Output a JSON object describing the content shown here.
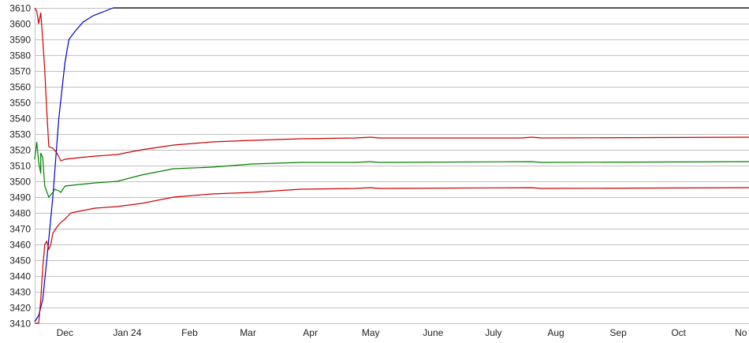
{
  "chart_data": {
    "type": "line",
    "title": "",
    "xlabel": "",
    "ylabel": "",
    "xlim": [
      "2023-11-16",
      "2024-11-05"
    ],
    "ylim": [
      3410,
      3610
    ],
    "grid": "horizontal",
    "legend": "none",
    "y_ticks": [
      3410,
      3420,
      3430,
      3440,
      3450,
      3460,
      3470,
      3480,
      3490,
      3500,
      3510,
      3520,
      3530,
      3540,
      3550,
      3560,
      3570,
      3580,
      3590,
      3600,
      3610
    ],
    "x_ticks": [
      {
        "date": "2023-12-01",
        "label": "Dec"
      },
      {
        "date": "2024-01-01",
        "label": "Jan 24"
      },
      {
        "date": "2024-02-01",
        "label": "Feb"
      },
      {
        "date": "2024-03-01",
        "label": "Mar"
      },
      {
        "date": "2024-04-01",
        "label": "Apr"
      },
      {
        "date": "2024-05-01",
        "label": "May"
      },
      {
        "date": "2024-06-01",
        "label": "June"
      },
      {
        "date": "2024-07-01",
        "label": "July"
      },
      {
        "date": "2024-08-01",
        "label": "Aug"
      },
      {
        "date": "2024-09-01",
        "label": "Sep"
      },
      {
        "date": "2024-10-01",
        "label": "Oct"
      },
      {
        "date": "2024-11-01",
        "label": "No"
      }
    ],
    "series": [
      {
        "color": "#000000",
        "points": [
          [
            "2023-12-25",
            3610
          ],
          [
            "2024-11-05",
            3610
          ]
        ]
      },
      {
        "color": "#0000cc",
        "points": [
          [
            "2023-11-16",
            3411
          ],
          [
            "2023-11-18",
            3415
          ],
          [
            "2023-11-20",
            3425
          ],
          [
            "2023-11-22",
            3450
          ],
          [
            "2023-11-25",
            3490
          ],
          [
            "2023-11-28",
            3540
          ],
          [
            "2023-12-01",
            3575
          ],
          [
            "2023-12-03",
            3590
          ],
          [
            "2023-12-06",
            3595
          ],
          [
            "2023-12-10",
            3601
          ],
          [
            "2023-12-15",
            3605
          ],
          [
            "2023-12-25",
            3610
          ]
        ]
      },
      {
        "color": "#cc0000",
        "points": [
          [
            "2023-11-16",
            3610
          ],
          [
            "2023-11-17",
            3608
          ],
          [
            "2023-11-18",
            3600
          ],
          [
            "2023-11-19",
            3607
          ],
          [
            "2023-11-20",
            3590
          ],
          [
            "2023-11-21",
            3570
          ],
          [
            "2023-11-22",
            3545
          ],
          [
            "2023-11-23",
            3522
          ],
          [
            "2023-11-25",
            3521
          ],
          [
            "2023-11-27",
            3518
          ],
          [
            "2023-11-29",
            3513
          ],
          [
            "2023-12-01",
            3514
          ],
          [
            "2023-12-08",
            3515
          ],
          [
            "2023-12-16",
            3516
          ],
          [
            "2023-12-27",
            3517
          ],
          [
            "2024-01-08",
            3520
          ],
          [
            "2024-01-24",
            3523
          ],
          [
            "2024-02-12",
            3525
          ],
          [
            "2024-03-03",
            3526
          ],
          [
            "2024-03-27",
            3527
          ],
          [
            "2024-04-23",
            3527.5
          ],
          [
            "2024-05-01",
            3528
          ],
          [
            "2024-05-05",
            3527.5
          ],
          [
            "2024-07-15",
            3527.5
          ],
          [
            "2024-07-20",
            3528
          ],
          [
            "2024-07-25",
            3527.5
          ],
          [
            "2024-11-05",
            3528
          ]
        ]
      },
      {
        "color": "#008000",
        "points": [
          [
            "2023-11-16",
            3514
          ],
          [
            "2023-11-17",
            3525
          ],
          [
            "2023-11-18",
            3512
          ],
          [
            "2023-11-19",
            3505
          ],
          [
            "2023-11-19",
            3518
          ],
          [
            "2023-11-20",
            3515
          ],
          [
            "2023-11-21",
            3497
          ],
          [
            "2023-11-23",
            3490
          ],
          [
            "2023-11-25",
            3493
          ],
          [
            "2023-11-26",
            3495
          ],
          [
            "2023-11-28",
            3494
          ],
          [
            "2023-11-29",
            3493
          ],
          [
            "2023-12-01",
            3497
          ],
          [
            "2023-12-08",
            3498
          ],
          [
            "2023-12-16",
            3499
          ],
          [
            "2023-12-27",
            3500
          ],
          [
            "2024-01-08",
            3504
          ],
          [
            "2024-01-24",
            3508
          ],
          [
            "2024-02-12",
            3509
          ],
          [
            "2024-03-03",
            3511
          ],
          [
            "2024-03-27",
            3512
          ],
          [
            "2024-04-23",
            3512
          ],
          [
            "2024-05-01",
            3512.5
          ],
          [
            "2024-05-05",
            3512
          ],
          [
            "2024-07-20",
            3512.5
          ],
          [
            "2024-07-25",
            3512
          ],
          [
            "2024-11-05",
            3512.5
          ]
        ]
      },
      {
        "color": "#cc0000",
        "points": [
          [
            "2023-11-16",
            3410
          ],
          [
            "2023-11-18",
            3410
          ],
          [
            "2023-11-19",
            3425
          ],
          [
            "2023-11-20",
            3445
          ],
          [
            "2023-11-21",
            3460
          ],
          [
            "2023-11-22",
            3462
          ],
          [
            "2023-11-23",
            3457
          ],
          [
            "2023-11-24",
            3460
          ],
          [
            "2023-11-25",
            3467
          ],
          [
            "2023-11-27",
            3471
          ],
          [
            "2023-11-29",
            3474
          ],
          [
            "2023-12-01",
            3476
          ],
          [
            "2023-12-04",
            3480
          ],
          [
            "2023-12-08",
            3481
          ],
          [
            "2023-12-16",
            3483
          ],
          [
            "2023-12-27",
            3484
          ],
          [
            "2024-01-08",
            3486
          ],
          [
            "2024-01-24",
            3490
          ],
          [
            "2024-02-12",
            3492
          ],
          [
            "2024-03-03",
            3493
          ],
          [
            "2024-03-27",
            3495
          ],
          [
            "2024-04-23",
            3495.5
          ],
          [
            "2024-05-01",
            3496
          ],
          [
            "2024-05-05",
            3495.5
          ],
          [
            "2024-07-20",
            3496
          ],
          [
            "2024-07-25",
            3495.5
          ],
          [
            "2024-11-05",
            3496
          ]
        ]
      }
    ]
  }
}
